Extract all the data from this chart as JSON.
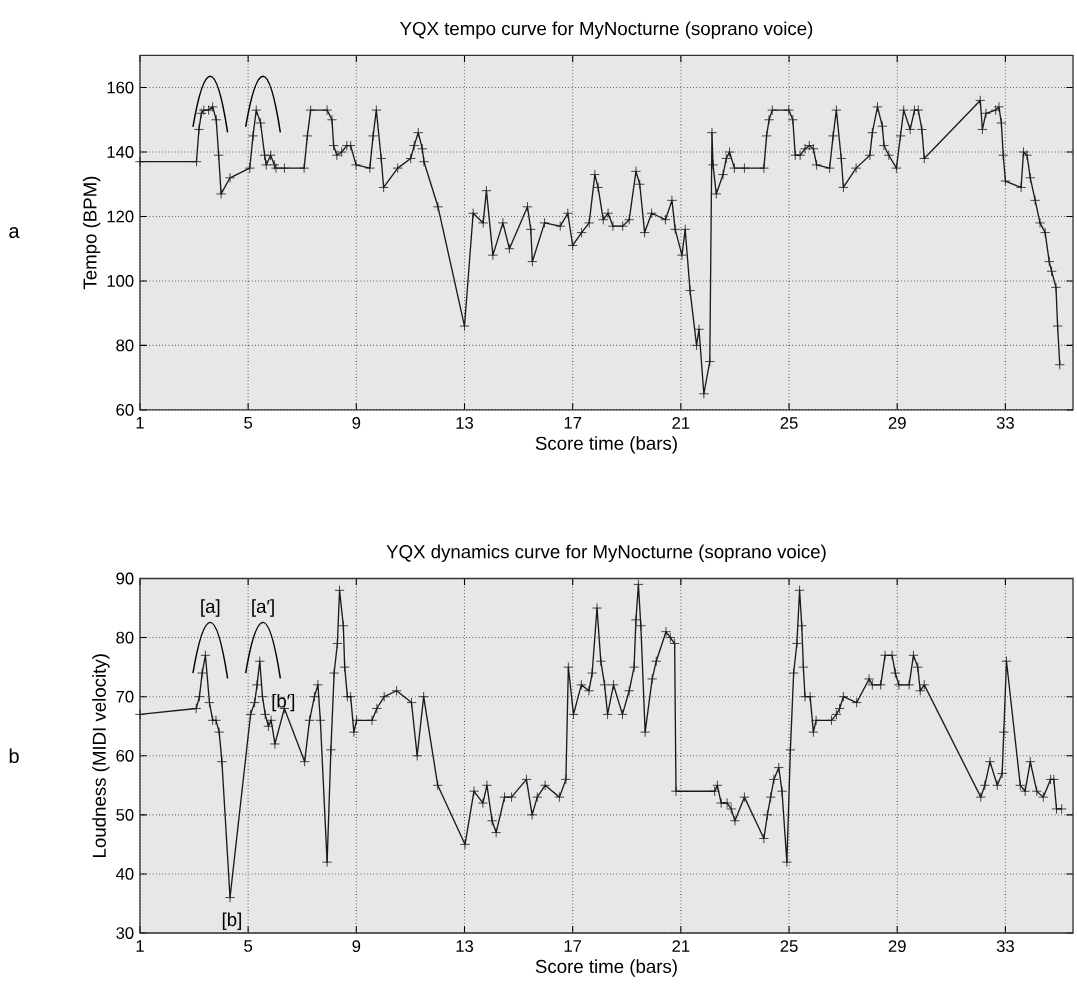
{
  "chart_data": [
    {
      "type": "line",
      "title": "YQX tempo curve for MyNocturne (soprano voice)",
      "xlabel": "Score time (bars)",
      "ylabel": "Tempo (BPM)",
      "annotations": [
        "a"
      ],
      "color": "#1a1a1a",
      "marker": "cross",
      "grid": true,
      "xlim": [
        1,
        35.5
      ],
      "ylim": [
        60,
        170
      ],
      "xticks": [
        1,
        5,
        9,
        13,
        17,
        21,
        25,
        29,
        33
      ],
      "yticks": [
        60,
        80,
        100,
        120,
        140,
        160
      ],
      "x": [
        1,
        3.09,
        3.18,
        3.27,
        3.36,
        3.54,
        3.69,
        3.82,
        3.91,
        4.0,
        4.33,
        5.06,
        5.18,
        5.3,
        5.46,
        5.61,
        5.67,
        5.83,
        5.97,
        6.03,
        6.34,
        7.07,
        7.19,
        7.31,
        7.92,
        8.1,
        8.16,
        8.28,
        8.46,
        8.65,
        8.79,
        8.99,
        9.5,
        9.62,
        9.74,
        9.92,
        10.01,
        10.53,
        11.01,
        11.14,
        11.29,
        11.44,
        11.5,
        12.02,
        13.0,
        13.32,
        13.69,
        13.81,
        14.05,
        14.42,
        14.66,
        15.33,
        15.45,
        15.51,
        15.96,
        16.54,
        16.82,
        17.0,
        17.33,
        17.61,
        17.82,
        17.94,
        18.13,
        18.31,
        18.49,
        18.85,
        19.09,
        19.34,
        19.48,
        19.66,
        19.92,
        20.43,
        20.67,
        20.79,
        21.04,
        21.16,
        21.34,
        21.58,
        21.67,
        21.85,
        22.07,
        22.15,
        22.19,
        22.31,
        22.56,
        22.68,
        22.8,
        22.98,
        23.35,
        24.07,
        24.17,
        24.26,
        24.38,
        24.99,
        25.14,
        25.23,
        25.41,
        25.59,
        25.75,
        25.9,
        26.02,
        26.5,
        26.63,
        26.75,
        26.93,
        27.01,
        27.48,
        27.99,
        28.08,
        28.27,
        28.45,
        28.51,
        28.69,
        28.97,
        29.12,
        29.24,
        29.48,
        29.64,
        29.78,
        29.91,
        30.0,
        32.07,
        32.15,
        32.28,
        32.64,
        32.76,
        32.85,
        32.92,
        33.0,
        33.58,
        33.67,
        33.8,
        33.92,
        34.1,
        34.28,
        34.47,
        34.62,
        34.71,
        34.87,
        34.93,
        35.01
      ],
      "values": [
        137,
        137,
        147,
        152,
        153,
        153,
        154,
        150,
        139,
        127,
        132,
        135,
        145,
        153,
        149,
        139,
        136,
        139,
        136,
        135,
        135,
        135,
        145,
        153,
        153,
        150,
        142,
        139,
        140,
        142,
        142,
        136,
        135,
        145,
        153,
        138,
        129,
        135,
        138,
        142,
        146,
        141,
        137,
        123,
        86,
        121,
        118,
        128,
        108,
        118,
        110,
        123,
        116,
        106,
        118,
        117,
        121,
        111,
        115,
        118,
        133,
        129,
        119,
        121,
        117,
        117,
        119,
        134,
        130,
        115,
        121,
        119,
        125,
        116,
        108,
        116,
        97,
        80,
        85,
        65,
        75,
        146,
        136,
        127,
        133,
        138,
        140,
        135,
        135,
        135,
        145,
        150,
        153,
        153,
        150,
        139,
        139,
        141,
        142,
        141,
        136,
        135,
        145,
        153,
        138,
        129,
        135,
        139,
        146,
        154,
        148,
        142,
        139,
        135,
        145,
        153,
        147,
        153,
        153,
        147,
        138,
        156,
        147,
        152,
        153,
        154,
        149,
        139,
        131,
        129,
        140,
        139,
        132,
        125,
        118,
        115,
        106,
        103,
        98,
        86,
        74
      ]
    },
    {
      "type": "line",
      "title": "YQX dynamics curve for MyNocturne (soprano voice)",
      "xlabel": "Score time (bars)",
      "ylabel": "Loudness (MIDI velocity)",
      "annotations": [
        "b",
        "[a]",
        "[a′]",
        {
          "text": "[b′]",
          "x": 6.3,
          "y": 69
        },
        "[b]"
      ],
      "color": "#1a1a1a",
      "marker": "cross",
      "grid": true,
      "xlim": [
        1,
        35.5
      ],
      "ylim": [
        30,
        90
      ],
      "xticks": [
        1,
        5,
        9,
        13,
        17,
        21,
        25,
        29,
        33
      ],
      "yticks": [
        30,
        40,
        50,
        60,
        70,
        80,
        90
      ],
      "x": [
        1,
        3.08,
        3.2,
        3.3,
        3.42,
        3.57,
        3.69,
        3.81,
        3.93,
        4.03,
        4.33,
        5.09,
        5.24,
        5.33,
        5.43,
        5.53,
        5.63,
        5.75,
        5.85,
        5.99,
        6.34,
        7.09,
        7.27,
        7.45,
        7.58,
        7.67,
        7.92,
        8.06,
        8.18,
        8.3,
        8.38,
        8.52,
        8.57,
        8.67,
        8.79,
        8.91,
        9.01,
        9.58,
        9.76,
        10.03,
        10.49,
        11.04,
        11.25,
        11.49,
        12.01,
        13.02,
        13.35,
        13.68,
        13.83,
        14.02,
        14.17,
        14.48,
        14.74,
        15.29,
        15.5,
        15.69,
        15.98,
        16.51,
        16.75,
        16.84,
        17.03,
        17.32,
        17.6,
        17.72,
        17.9,
        18.04,
        18.18,
        18.29,
        18.51,
        18.84,
        19.09,
        19.27,
        19.34,
        19.43,
        19.52,
        19.68,
        19.94,
        20.09,
        20.45,
        20.61,
        20.77,
        20.82,
        22.25,
        22.35,
        22.49,
        22.71,
        22.86,
        23.0,
        23.35,
        24.07,
        24.2,
        24.32,
        24.44,
        24.62,
        24.74,
        24.92,
        25.05,
        25.17,
        25.29,
        25.39,
        25.47,
        25.53,
        25.59,
        25.78,
        25.9,
        26.0,
        26.57,
        26.75,
        26.87,
        27.01,
        27.5,
        27.96,
        28.08,
        28.39,
        28.55,
        28.81,
        28.93,
        29.06,
        29.44,
        29.6,
        29.76,
        29.85,
        30.0,
        32.09,
        32.24,
        32.43,
        32.7,
        32.88,
        32.94,
        33.04,
        33.55,
        33.73,
        33.92,
        34.16,
        34.4,
        34.67,
        34.79,
        34.89,
        35.08
      ],
      "values": [
        67,
        68,
        70,
        74,
        77,
        69,
        66,
        66,
        64,
        59,
        36,
        67,
        69,
        72,
        76,
        70,
        67,
        65,
        66,
        62,
        68,
        59,
        66,
        70,
        72,
        66,
        42,
        61,
        74,
        79,
        88,
        82,
        75,
        70,
        70,
        64,
        66,
        66,
        68,
        70,
        71,
        69,
        60,
        70,
        55,
        45,
        54,
        52,
        55,
        49,
        47,
        53,
        53,
        56,
        50,
        53,
        55,
        53,
        56,
        75,
        67,
        72,
        71,
        74,
        85,
        76,
        72,
        67,
        72,
        67,
        71,
        75,
        83,
        89,
        82,
        64,
        73,
        76,
        81,
        80,
        79,
        54,
        54,
        55,
        52,
        52,
        51,
        49,
        53,
        46,
        50,
        53,
        56,
        58,
        54,
        42,
        61,
        74,
        79,
        88,
        82,
        75,
        70,
        70,
        64,
        66,
        66,
        67,
        68,
        70,
        69,
        73,
        72,
        72,
        77,
        77,
        74,
        72,
        72,
        77,
        75,
        71,
        72,
        53,
        55,
        59,
        55,
        57,
        64,
        76,
        55,
        54,
        59,
        54,
        53,
        56,
        56,
        51,
        51
      ]
    }
  ]
}
